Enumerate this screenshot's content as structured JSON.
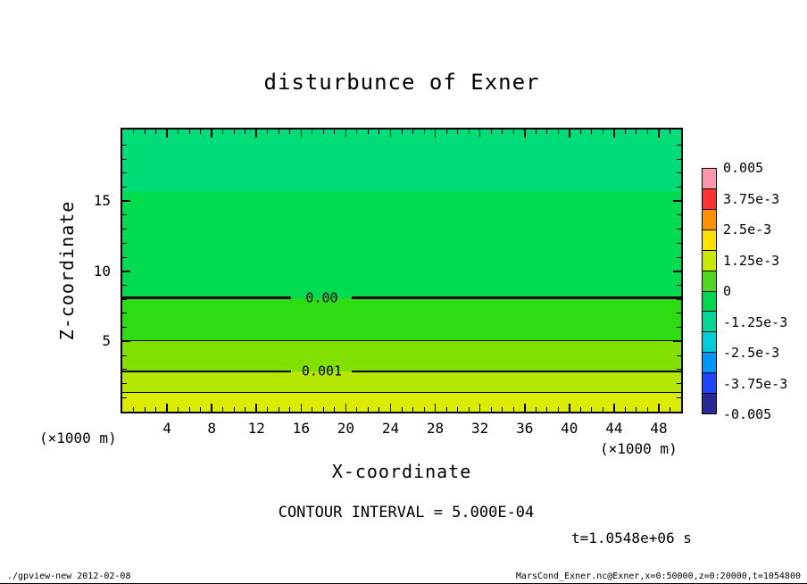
{
  "title": "disturbunce of Exner",
  "x_axis": {
    "label": "X-coordinate",
    "unit": "(×1000 m)",
    "min": 0,
    "max": 50,
    "major_ticks": [
      4,
      8,
      12,
      16,
      20,
      24,
      28,
      32,
      36,
      40,
      44,
      48
    ],
    "minor_step": 1
  },
  "z_axis": {
    "label": "Z-coordinate",
    "unit": "(×1000 m)",
    "min": 0,
    "max": 20.1,
    "major_ticks": [
      5,
      10,
      15
    ],
    "minor_step": 1
  },
  "colorbar": {
    "labels": [
      "0.005",
      "3.75e-3",
      "2.5e-3",
      "1.25e-3",
      "0",
      "-1.25e-3",
      "-2.5e-3",
      "-3.75e-3",
      "-0.005"
    ],
    "colors": [
      "#ff96aa",
      "#ff3232",
      "#ff9100",
      "#ffe000",
      "#c8e600",
      "#50d71e",
      "#00d750",
      "#00d796",
      "#00cdd7",
      "#0096ff",
      "#1e46ff",
      "#282896"
    ],
    "value_max": 0.005,
    "value_min": -0.005
  },
  "notes": {
    "contour_interval": "CONTOUR INTERVAL = 5.000E-04",
    "time_stamp": "t=1.0548e+06 s"
  },
  "footer": {
    "left": "./gpview-new  2012-02-08",
    "right": "MarsCond_Exner.nc@Exner,x=0:50000,z=0:20000,t=1054800"
  },
  "chart_data": {
    "type": "heatmap",
    "title": "disturbunce of Exner",
    "xlabel": "X-coordinate (×1000 m)",
    "ylabel": "Z-coordinate (×1000 m)",
    "xlim": [
      0,
      50
    ],
    "zlim": [
      0,
      20.1
    ],
    "grid": false,
    "legend_position": "right-colorbar",
    "contour_interval": 0.0005,
    "field_description": "horizontally uniform Exner-function disturbance, value decreases monotonically with height from ~0.002 at z=0 to ~-0.001 at z=20",
    "bands": [
      {
        "value_min": 0.0015,
        "value_max": 0.002,
        "z_from": 0.0,
        "z_to": 1.35,
        "color": "#dcec00"
      },
      {
        "value_min": 0.001,
        "value_max": 0.0015,
        "z_from": 1.35,
        "z_to": 2.85,
        "color": "#b4e600"
      },
      {
        "value_min": 0.0005,
        "value_max": 0.001,
        "z_from": 2.85,
        "z_to": 5.05,
        "color": "#82e000"
      },
      {
        "value_min": 0.0,
        "value_max": 0.0005,
        "z_from": 5.05,
        "z_to": 8.1,
        "color": "#2edc14"
      },
      {
        "value_min": -0.0005,
        "value_max": 0.0,
        "z_from": 8.1,
        "z_to": 15.7,
        "color": "#00dc50"
      },
      {
        "value_min": -0.001,
        "value_max": -0.0005,
        "z_from": 15.7,
        "z_to": 20.1,
        "color": "#00dc78"
      }
    ],
    "contours": [
      {
        "value": 0.0015,
        "z": 1.35,
        "thick": false,
        "label": "",
        "label_x_frac": 0
      },
      {
        "value": 0.001,
        "z": 2.85,
        "thick": true,
        "label": "0.001",
        "label_x_frac": 0.357
      },
      {
        "value": 0.0005,
        "z": 5.05,
        "thick": false,
        "label": "",
        "label_x_frac": 0
      },
      {
        "value": 0.0,
        "z": 8.1,
        "thick": true,
        "label": "0.00",
        "label_x_frac": 0.357
      }
    ]
  }
}
